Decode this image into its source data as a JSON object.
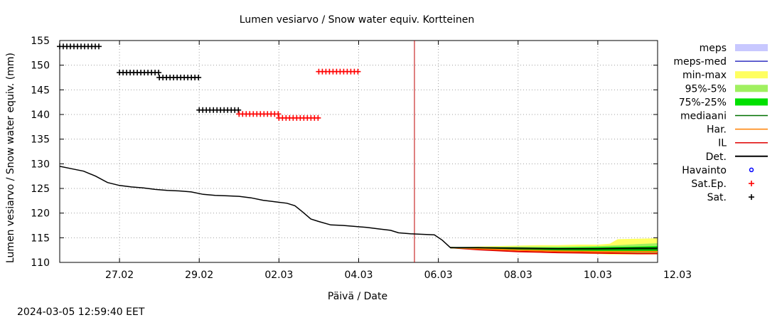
{
  "chart_data": {
    "type": "line",
    "title": "Lumen vesiarvo / Snow water equiv.  Kortteinen",
    "xlabel": "Päivä / Date",
    "ylabel": "Lumen vesiarvo / Snow water equiv. (mm)",
    "timestamp": "2024-03-05 12:59:40 EET",
    "ylim": [
      110,
      155
    ],
    "yticks": [
      110,
      115,
      120,
      125,
      130,
      135,
      140,
      145,
      150,
      155
    ],
    "xlim": [
      -1.5,
      13.5
    ],
    "xticks": [
      {
        "x": 0,
        "label": "27.02"
      },
      {
        "x": 2,
        "label": "29.02"
      },
      {
        "x": 4,
        "label": "02.03"
      },
      {
        "x": 6,
        "label": "04.03"
      },
      {
        "x": 8,
        "label": "06.03"
      },
      {
        "x": 10,
        "label": "08.03"
      },
      {
        "x": 12,
        "label": "10.03"
      },
      {
        "x": 14,
        "label": "12.03"
      }
    ],
    "now_x": 7.4,
    "grid": true,
    "legend_position": "right",
    "colors": {
      "meps": "#c8c8ff",
      "meps_med": "#3030c0",
      "min_max": "#ffff60",
      "p95_5": "#a0f060",
      "p75_25": "#00e000",
      "median": "#007000",
      "har": "#ff8000",
      "il": "#e00000",
      "det": "#000000",
      "havainto": "#0000ff",
      "sat_ep": "#ff0000",
      "sat": "#000000",
      "now_line": "#c00000"
    },
    "legend": [
      {
        "key": "meps",
        "label": "meps",
        "style": "band"
      },
      {
        "key": "meps_med",
        "label": "meps-med",
        "style": "line"
      },
      {
        "key": "min_max",
        "label": "min-max",
        "style": "band"
      },
      {
        "key": "p95_5",
        "label": "95%-5%",
        "style": "band"
      },
      {
        "key": "p75_25",
        "label": "75%-25%",
        "style": "band"
      },
      {
        "key": "median",
        "label": "mediaani",
        "style": "line"
      },
      {
        "key": "har",
        "label": "Har.",
        "style": "line"
      },
      {
        "key": "il",
        "label": "IL",
        "style": "line"
      },
      {
        "key": "det",
        "label": "Det.",
        "style": "line"
      },
      {
        "key": "havainto",
        "label": "Havainto",
        "style": "circle"
      },
      {
        "key": "sat_ep",
        "label": "Sat.Ep.",
        "style": "plus"
      },
      {
        "key": "sat",
        "label": "Sat.",
        "style": "plus"
      }
    ],
    "series": {
      "det": [
        [
          -1.5,
          129.5
        ],
        [
          -1.2,
          129.0
        ],
        [
          -0.9,
          128.5
        ],
        [
          -0.6,
          127.5
        ],
        [
          -0.3,
          126.2
        ],
        [
          0.0,
          125.6
        ],
        [
          0.3,
          125.3
        ],
        [
          0.6,
          125.1
        ],
        [
          0.9,
          124.8
        ],
        [
          1.2,
          124.6
        ],
        [
          1.5,
          124.5
        ],
        [
          1.8,
          124.3
        ],
        [
          2.1,
          123.8
        ],
        [
          2.4,
          123.6
        ],
        [
          2.7,
          123.5
        ],
        [
          3.0,
          123.4
        ],
        [
          3.3,
          123.1
        ],
        [
          3.6,
          122.6
        ],
        [
          3.9,
          122.3
        ],
        [
          4.2,
          122.0
        ],
        [
          4.4,
          121.5
        ],
        [
          4.6,
          120.2
        ],
        [
          4.8,
          118.8
        ],
        [
          5.0,
          118.3
        ],
        [
          5.3,
          117.6
        ],
        [
          5.6,
          117.5
        ],
        [
          5.9,
          117.3
        ],
        [
          6.2,
          117.1
        ],
        [
          6.5,
          116.8
        ],
        [
          6.8,
          116.5
        ],
        [
          7.0,
          116.0
        ],
        [
          7.3,
          115.8
        ],
        [
          7.6,
          115.7
        ],
        [
          7.9,
          115.6
        ],
        [
          8.1,
          114.5
        ],
        [
          8.3,
          113.0
        ],
        [
          9.0,
          113.0
        ],
        [
          10.0,
          112.9
        ],
        [
          11.0,
          112.8
        ],
        [
          12.0,
          112.8
        ],
        [
          13.0,
          112.9
        ],
        [
          14.0,
          112.9
        ],
        [
          15.0,
          112.9
        ]
      ],
      "min_max": {
        "x": [
          8.3,
          9.0,
          10.0,
          10.5,
          11.0,
          11.5,
          12.0,
          12.3,
          12.5,
          13.0,
          13.5,
          14.0,
          15.0
        ],
        "lo": [
          113.0,
          112.7,
          112.4,
          112.1,
          112.0,
          111.8,
          111.7,
          111.6,
          111.6,
          111.6,
          111.6,
          111.5,
          111.5
        ],
        "hi": [
          113.0,
          113.2,
          113.4,
          113.5,
          113.5,
          113.6,
          113.6,
          113.8,
          114.7,
          114.8,
          114.9,
          115.0,
          115.0
        ]
      },
      "p95_5": {
        "x": [
          8.3,
          9.0,
          10.0,
          11.0,
          12.0,
          12.5,
          13.0,
          14.0,
          15.0
        ],
        "lo": [
          113.0,
          112.8,
          112.5,
          112.3,
          112.1,
          112.0,
          111.9,
          111.8,
          111.8
        ],
        "hi": [
          113.0,
          113.1,
          113.2,
          113.2,
          113.3,
          113.5,
          113.7,
          113.9,
          114.0
        ]
      },
      "p75_25": {
        "x": [
          8.3,
          9.0,
          10.0,
          11.0,
          12.0,
          13.0,
          14.0,
          15.0
        ],
        "lo": [
          113.0,
          112.9,
          112.6,
          112.4,
          112.3,
          112.2,
          112.1,
          112.0
        ],
        "hi": [
          113.0,
          113.0,
          113.0,
          113.0,
          113.1,
          113.2,
          113.3,
          113.4
        ]
      },
      "median": [
        [
          8.3,
          113.0
        ],
        [
          9.0,
          113.0
        ],
        [
          10.0,
          112.8
        ],
        [
          11.0,
          112.7
        ],
        [
          12.0,
          112.7
        ],
        [
          13.0,
          112.7
        ],
        [
          14.0,
          112.7
        ],
        [
          15.0,
          112.7
        ]
      ],
      "har": [
        [
          8.3,
          113.0
        ],
        [
          9.0,
          112.8
        ],
        [
          10.0,
          112.5
        ],
        [
          11.0,
          112.3
        ],
        [
          12.0,
          112.2
        ],
        [
          13.0,
          112.2
        ],
        [
          14.0,
          112.2
        ],
        [
          15.0,
          112.2
        ]
      ],
      "il": [
        [
          8.3,
          113.0
        ],
        [
          9.0,
          112.6
        ],
        [
          10.0,
          112.2
        ],
        [
          11.0,
          112.0
        ],
        [
          12.0,
          111.9
        ],
        [
          13.0,
          111.8
        ],
        [
          14.0,
          111.8
        ],
        [
          15.0,
          111.8
        ]
      ],
      "sat": [
        {
          "x0": -1.5,
          "x1": -0.5,
          "y": 153.8
        },
        {
          "x0": 0.0,
          "x1": 1.0,
          "y": 148.5
        },
        {
          "x0": 1.0,
          "x1": 2.0,
          "y": 147.5
        },
        {
          "x0": 2.0,
          "x1": 3.0,
          "y": 140.9
        }
      ],
      "sat_ep": [
        {
          "x0": 3.0,
          "x1": 4.0,
          "y": 140.1
        },
        {
          "x0": 4.0,
          "x1": 5.0,
          "y": 139.3
        },
        {
          "x0": 5.0,
          "x1": 6.0,
          "y": 148.7
        }
      ]
    }
  }
}
